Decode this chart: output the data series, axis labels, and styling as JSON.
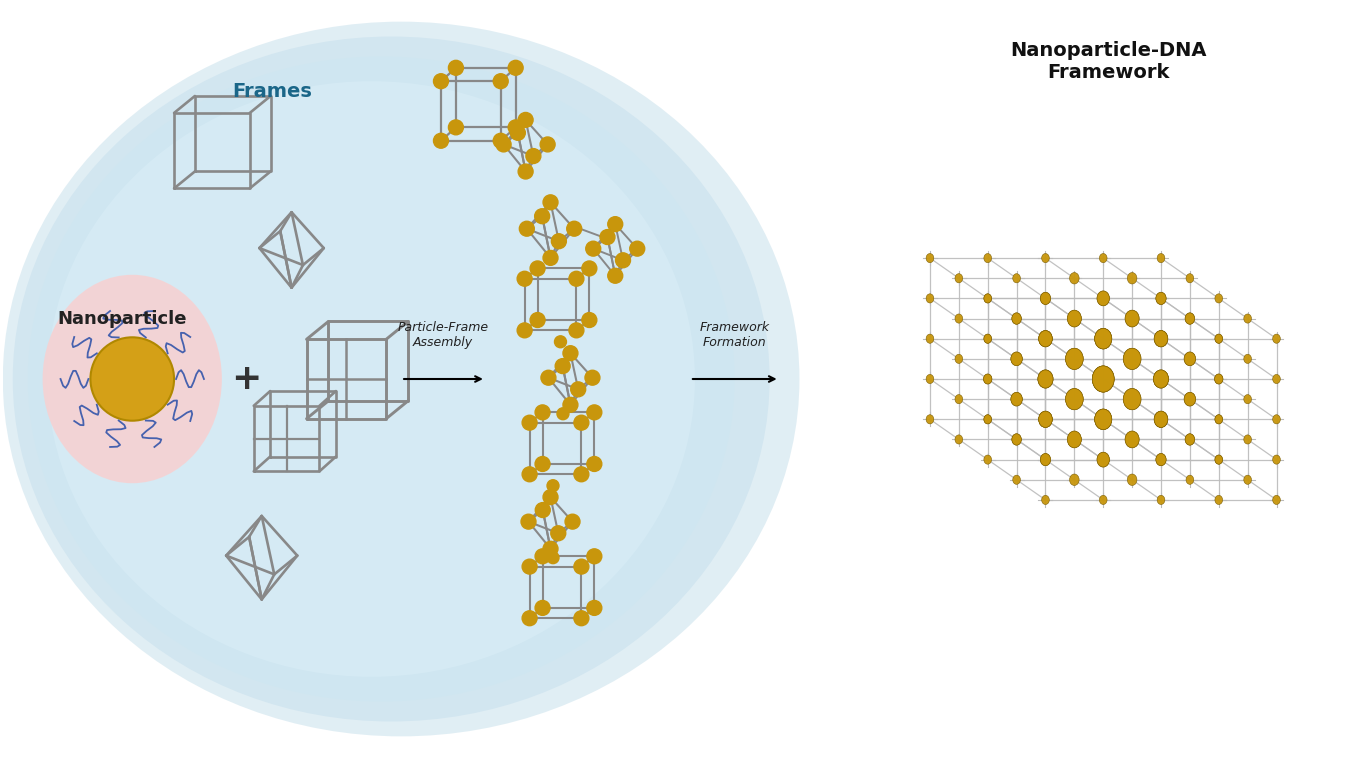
{
  "bg_color": "#ffffff",
  "frame_color": "#888888",
  "node_color": "#c8960c",
  "nanoparticle_gold": "#d4a017",
  "nanoparticle_pink_bg": "#f5c6c6",
  "dna_color": "#3355aa",
  "framework_grid_color": "#bbbbbb",
  "framework_sphere_color": "#c8960c",
  "frames_label": "Frames",
  "nanoparticle_label": "Nanoparticle",
  "particle_frame_label": "Particle-Frame\nAssembly",
  "framework_formation_label": "Framework\nFormation",
  "framework_title": "Nanoparticle-DNA\nFramework"
}
